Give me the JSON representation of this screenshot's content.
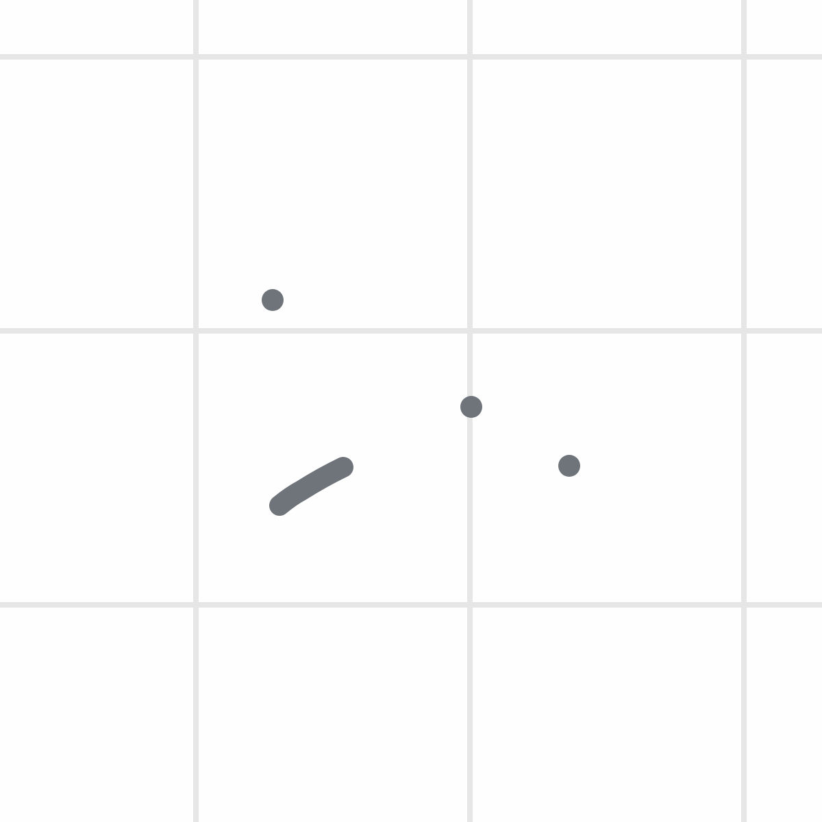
{
  "canvas": {
    "background": "#fefefe",
    "grid_color": "#e6e6e6",
    "stroke_color": "#6e747a"
  }
}
